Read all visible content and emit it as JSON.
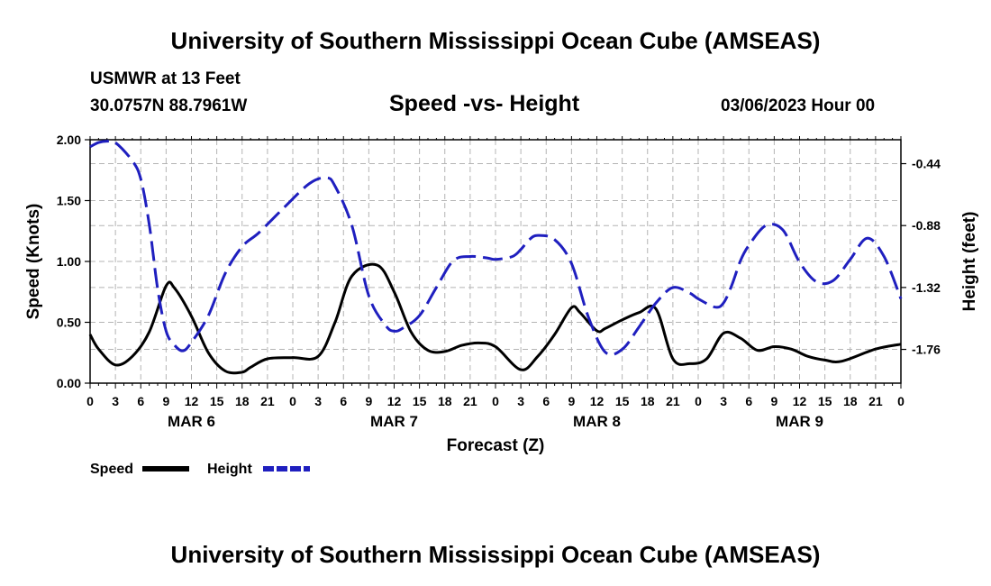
{
  "page": {
    "title": "University of Southern Mississippi Ocean Cube (AMSEAS)",
    "footer_title": "University of Southern Mississippi Ocean Cube (AMSEAS)",
    "station": "USMWR at 13 Feet",
    "coords": "30.0757N  88.7961W",
    "chart_title": "Speed -vs- Height",
    "datetime": "03/06/2023 Hour 00"
  },
  "chart_data": {
    "type": "line",
    "title": "Speed -vs- Height",
    "xlabel": "Forecast (Z)",
    "ylabel": "Speed (Knots)",
    "y2label": "Height (feet)",
    "x_range_hours": [
      0,
      96
    ],
    "ylim": [
      0,
      2.0
    ],
    "y2lim": [
      -2.0,
      -0.27
    ],
    "grid": true,
    "x_tick_labels": [
      "0",
      "3",
      "6",
      "9",
      "12",
      "15",
      "18",
      "21",
      "0",
      "3",
      "6",
      "9",
      "12",
      "15",
      "18",
      "21",
      "0",
      "3",
      "6",
      "9",
      "12",
      "15",
      "18",
      "21",
      "0",
      "3",
      "6",
      "9",
      "12",
      "15",
      "18",
      "21",
      "0"
    ],
    "day_labels": [
      "MAR 6",
      "MAR 7",
      "MAR 8",
      "MAR 9"
    ],
    "y_ticks": [
      "0.00",
      "0.50",
      "1.00",
      "1.50",
      "2.00"
    ],
    "y2_ticks": [
      "-0.44",
      "-0.88",
      "-1.32",
      "-1.76"
    ],
    "legend": [
      {
        "name": "Speed",
        "color": "#000000",
        "style": "solid"
      },
      {
        "name": "Height",
        "color": "#1f1fbf",
        "style": "dashed"
      }
    ],
    "series": [
      {
        "name": "Speed",
        "units": "knots",
        "axis": "left",
        "color": "#000000",
        "dash": "solid",
        "x": [
          0,
          1,
          3,
          5,
          7,
          9,
          10,
          12,
          14,
          16,
          18,
          19,
          21,
          24,
          27,
          29,
          31,
          34,
          36,
          38,
          40,
          42,
          44,
          46,
          48,
          51,
          53,
          55,
          57,
          58,
          60,
          61,
          63,
          65,
          67,
          69,
          71,
          73,
          75,
          77,
          79,
          81,
          83,
          85,
          87,
          89,
          93,
          96
        ],
        "values": [
          0.4,
          0.28,
          0.15,
          0.22,
          0.42,
          0.8,
          0.78,
          0.55,
          0.25,
          0.1,
          0.09,
          0.13,
          0.2,
          0.21,
          0.22,
          0.5,
          0.88,
          0.97,
          0.75,
          0.42,
          0.27,
          0.26,
          0.31,
          0.33,
          0.3,
          0.11,
          0.22,
          0.4,
          0.62,
          0.58,
          0.43,
          0.45,
          0.52,
          0.58,
          0.61,
          0.2,
          0.16,
          0.2,
          0.41,
          0.37,
          0.27,
          0.3,
          0.28,
          0.22,
          0.19,
          0.18,
          0.28,
          0.32
        ]
      },
      {
        "name": "Height",
        "units": "feet",
        "axis": "right",
        "color": "#1f1fbf",
        "dash": "dashed",
        "x": [
          0,
          1,
          2,
          3,
          5,
          6,
          7,
          8,
          9,
          10,
          11,
          12,
          14,
          16,
          18,
          20,
          23,
          26,
          28,
          29,
          31,
          33,
          35,
          36,
          37,
          39,
          41,
          43,
          45,
          47,
          48,
          50,
          51,
          52,
          53,
          55,
          57,
          59,
          61,
          63,
          65,
          67,
          69,
          71,
          72,
          74,
          75,
          76,
          77,
          78,
          80,
          82,
          84,
          86,
          88,
          90,
          92,
          94,
          96
        ],
        "values": [
          -0.32,
          -0.29,
          -0.28,
          -0.29,
          -0.42,
          -0.55,
          -0.87,
          -1.33,
          -1.63,
          -1.73,
          -1.77,
          -1.71,
          -1.52,
          -1.22,
          -1.03,
          -0.93,
          -0.75,
          -0.58,
          -0.54,
          -0.6,
          -0.88,
          -1.38,
          -1.59,
          -1.63,
          -1.61,
          -1.52,
          -1.32,
          -1.13,
          -1.1,
          -1.11,
          -1.12,
          -1.1,
          -1.05,
          -0.98,
          -0.95,
          -0.98,
          -1.15,
          -1.53,
          -1.78,
          -1.76,
          -1.6,
          -1.43,
          -1.32,
          -1.36,
          -1.4,
          -1.46,
          -1.43,
          -1.3,
          -1.13,
          -1.02,
          -0.88,
          -0.91,
          -1.14,
          -1.28,
          -1.27,
          -1.12,
          -0.97,
          -1.1,
          -1.4
        ]
      }
    ]
  }
}
